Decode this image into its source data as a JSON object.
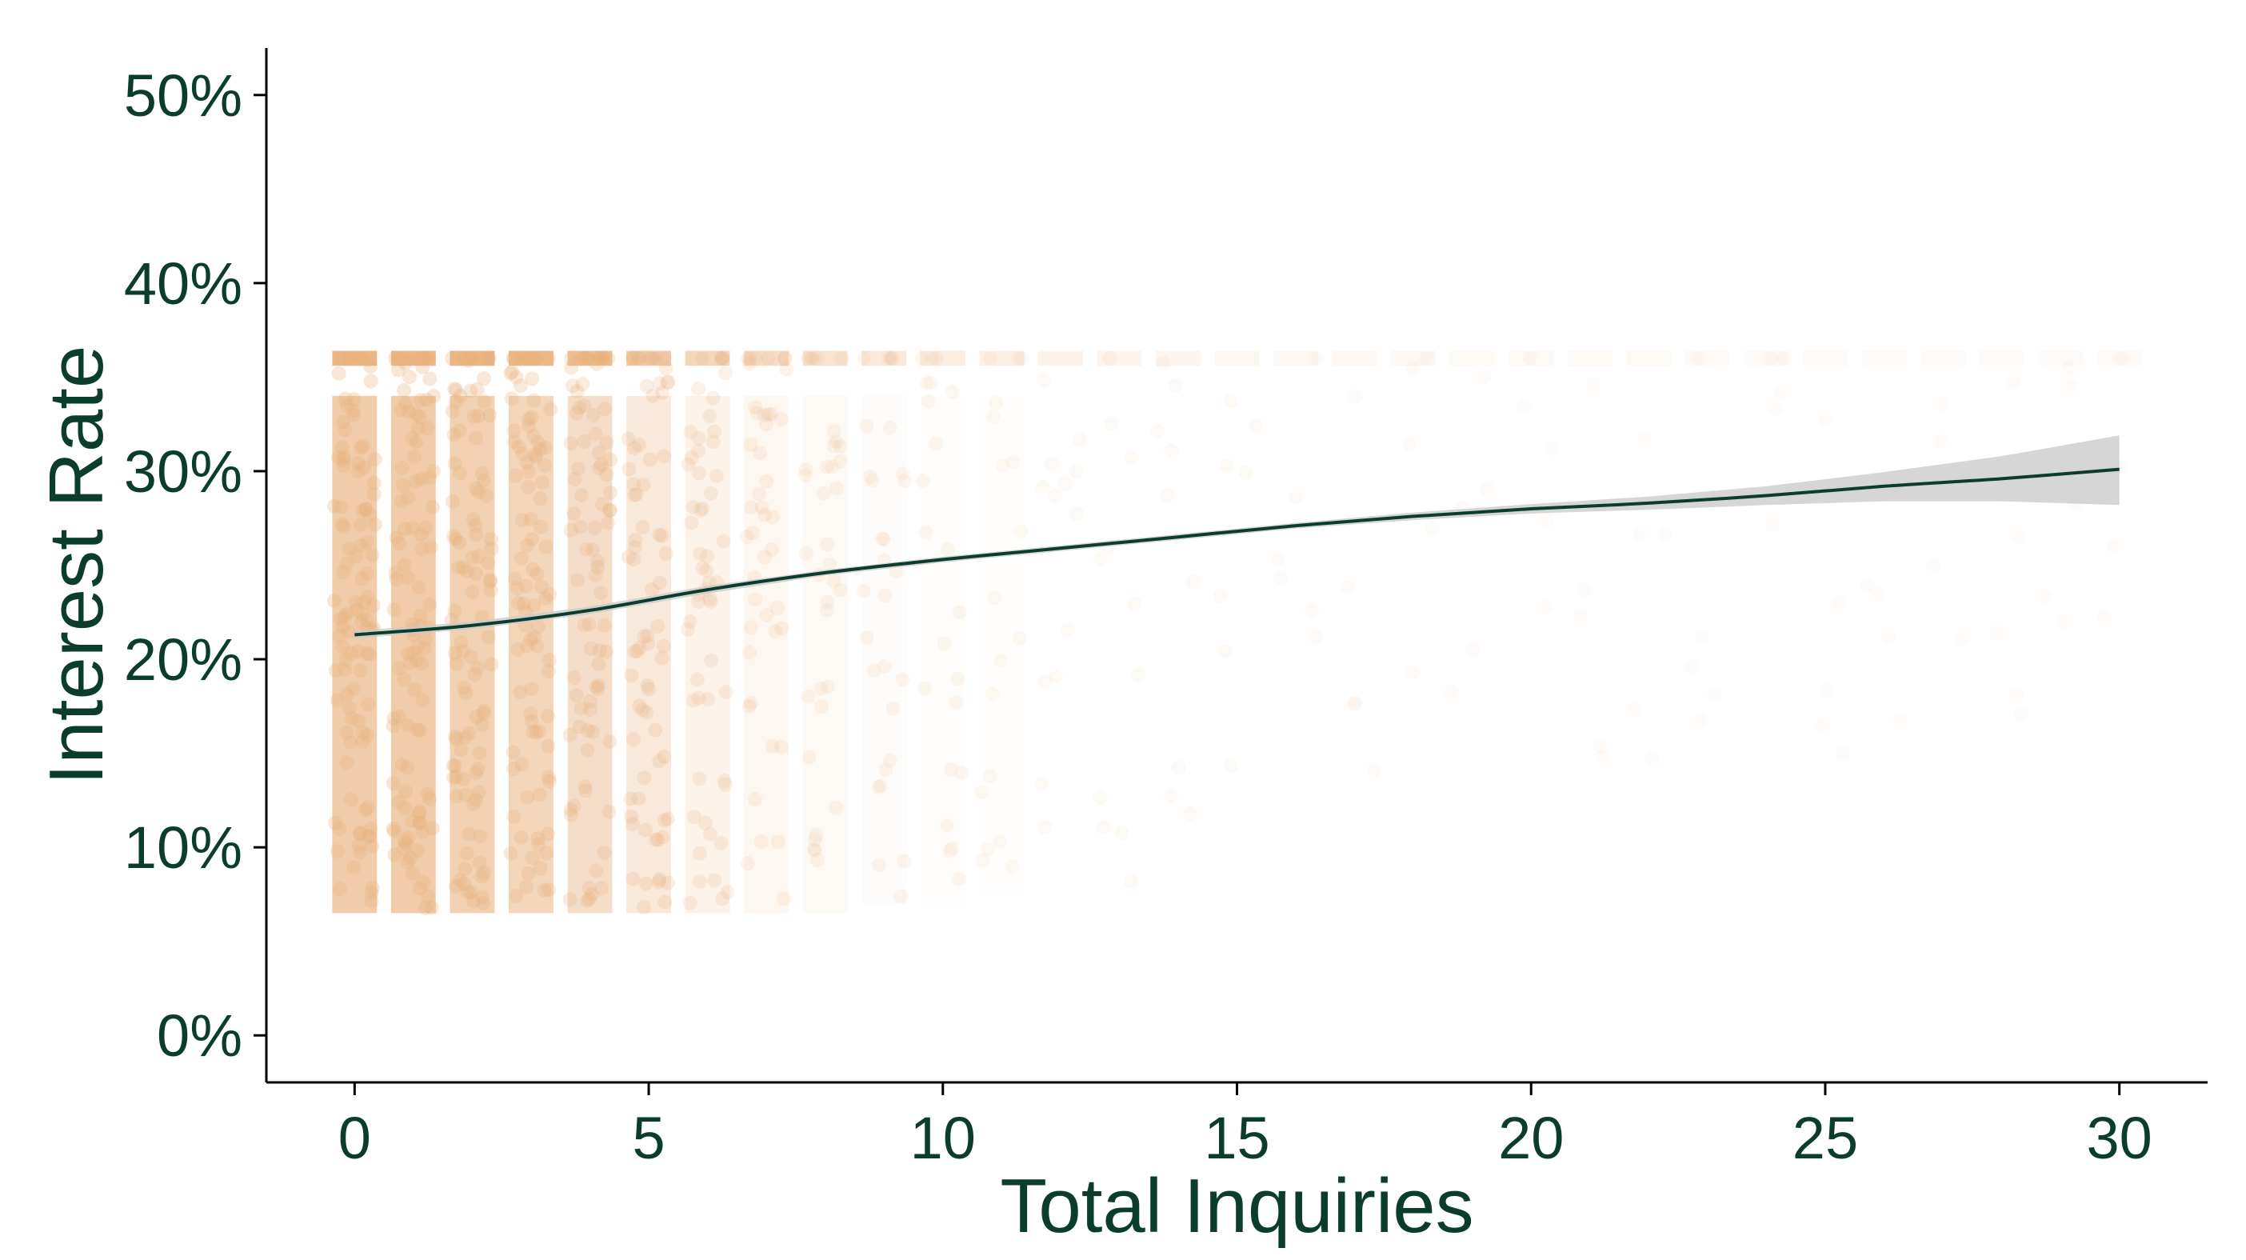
{
  "colors": {
    "points": "#e8b07c",
    "trend_line": "#0b3d2e",
    "confidence_band": "#cccccc",
    "axis": "#000000",
    "text": "#0b3d2e"
  },
  "chart_data": {
    "type": "scatter",
    "xlabel": "Total Inquiries",
    "ylabel": "Interest Rate",
    "xlim": [
      -1.5,
      31.5
    ],
    "ylim": [
      -2.5,
      52.5
    ],
    "x_ticks": [
      0,
      5,
      10,
      15,
      20,
      25,
      30
    ],
    "x_tick_labels": [
      "0",
      "5",
      "10",
      "15",
      "20",
      "25",
      "30"
    ],
    "y_ticks": [
      0,
      10,
      20,
      30,
      40,
      50
    ],
    "y_tick_labels": [
      "0%",
      "10%",
      "20%",
      "30%",
      "40%",
      "50%"
    ],
    "grid": false,
    "legend": "none",
    "scatter_bands": [
      {
        "x": 0,
        "y_min": 6.5,
        "y_max": 36,
        "density": 1.0
      },
      {
        "x": 1,
        "y_min": 6.5,
        "y_max": 36,
        "density": 1.0
      },
      {
        "x": 2,
        "y_min": 6.5,
        "y_max": 36,
        "density": 0.95
      },
      {
        "x": 3,
        "y_min": 6.5,
        "y_max": 36,
        "density": 0.9
      },
      {
        "x": 4,
        "y_min": 6.5,
        "y_max": 36,
        "density": 0.8
      },
      {
        "x": 5,
        "y_min": 6.5,
        "y_max": 36,
        "density": 0.65
      },
      {
        "x": 6,
        "y_min": 6.5,
        "y_max": 36,
        "density": 0.5
      },
      {
        "x": 7,
        "y_min": 6.5,
        "y_max": 36,
        "density": 0.4
      },
      {
        "x": 8,
        "y_min": 6.5,
        "y_max": 36,
        "density": 0.32
      },
      {
        "x": 9,
        "y_min": 7,
        "y_max": 36,
        "density": 0.25
      },
      {
        "x": 10,
        "y_min": 7,
        "y_max": 36,
        "density": 0.2
      },
      {
        "x": 11,
        "y_min": 7.5,
        "y_max": 36,
        "density": 0.16
      },
      {
        "x": 12,
        "y_min": 8,
        "y_max": 36,
        "density": 0.12
      },
      {
        "x": 13,
        "y_min": 8,
        "y_max": 36,
        "density": 0.1
      },
      {
        "x": 14,
        "y_min": 9,
        "y_max": 36,
        "density": 0.08
      },
      {
        "x": 15,
        "y_min": 9,
        "y_max": 36,
        "density": 0.06
      },
      {
        "x": 16,
        "y_min": 10,
        "y_max": 36,
        "density": 0.05
      },
      {
        "x": 17,
        "y_min": 10,
        "y_max": 36,
        "density": 0.04
      },
      {
        "x": 18,
        "y_min": 11,
        "y_max": 36,
        "density": 0.035
      },
      {
        "x": 19,
        "y_min": 11,
        "y_max": 36,
        "density": 0.03
      },
      {
        "x": 20,
        "y_min": 12,
        "y_max": 36,
        "density": 0.025
      },
      {
        "x": 21,
        "y_min": 12,
        "y_max": 36,
        "density": 0.02
      },
      {
        "x": 22,
        "y_min": 13,
        "y_max": 36,
        "density": 0.018
      },
      {
        "x": 23,
        "y_min": 13,
        "y_max": 36,
        "density": 0.015
      },
      {
        "x": 24,
        "y_min": 14,
        "y_max": 36,
        "density": 0.013
      },
      {
        "x": 25,
        "y_min": 14,
        "y_max": 36,
        "density": 0.012
      },
      {
        "x": 26,
        "y_min": 15,
        "y_max": 36,
        "density": 0.01
      },
      {
        "x": 27,
        "y_min": 15,
        "y_max": 36,
        "density": 0.01
      },
      {
        "x": 28,
        "y_min": 16,
        "y_max": 36,
        "density": 0.009
      },
      {
        "x": 29,
        "y_min": 16,
        "y_max": 36,
        "density": 0.008
      },
      {
        "x": 30,
        "y_min": 17,
        "y_max": 36,
        "density": 0.008
      }
    ],
    "trend": {
      "x": [
        0,
        2,
        4,
        6,
        8,
        10,
        12,
        14,
        16,
        18,
        20,
        22,
        24,
        26,
        28,
        30
      ],
      "y": [
        21.3,
        21.8,
        22.6,
        23.7,
        24.6,
        25.3,
        25.9,
        26.5,
        27.1,
        27.6,
        28.0,
        28.3,
        28.7,
        29.2,
        29.6,
        30.1
      ],
      "ci_lower": [
        21.1,
        21.6,
        22.4,
        23.5,
        24.45,
        25.15,
        25.75,
        26.35,
        26.95,
        27.4,
        27.75,
        27.95,
        28.2,
        28.4,
        28.4,
        28.2
      ],
      "ci_upper": [
        21.5,
        22.0,
        22.8,
        23.9,
        24.75,
        25.45,
        26.05,
        26.65,
        27.25,
        27.8,
        28.25,
        28.65,
        29.2,
        29.95,
        30.8,
        31.9
      ]
    }
  }
}
